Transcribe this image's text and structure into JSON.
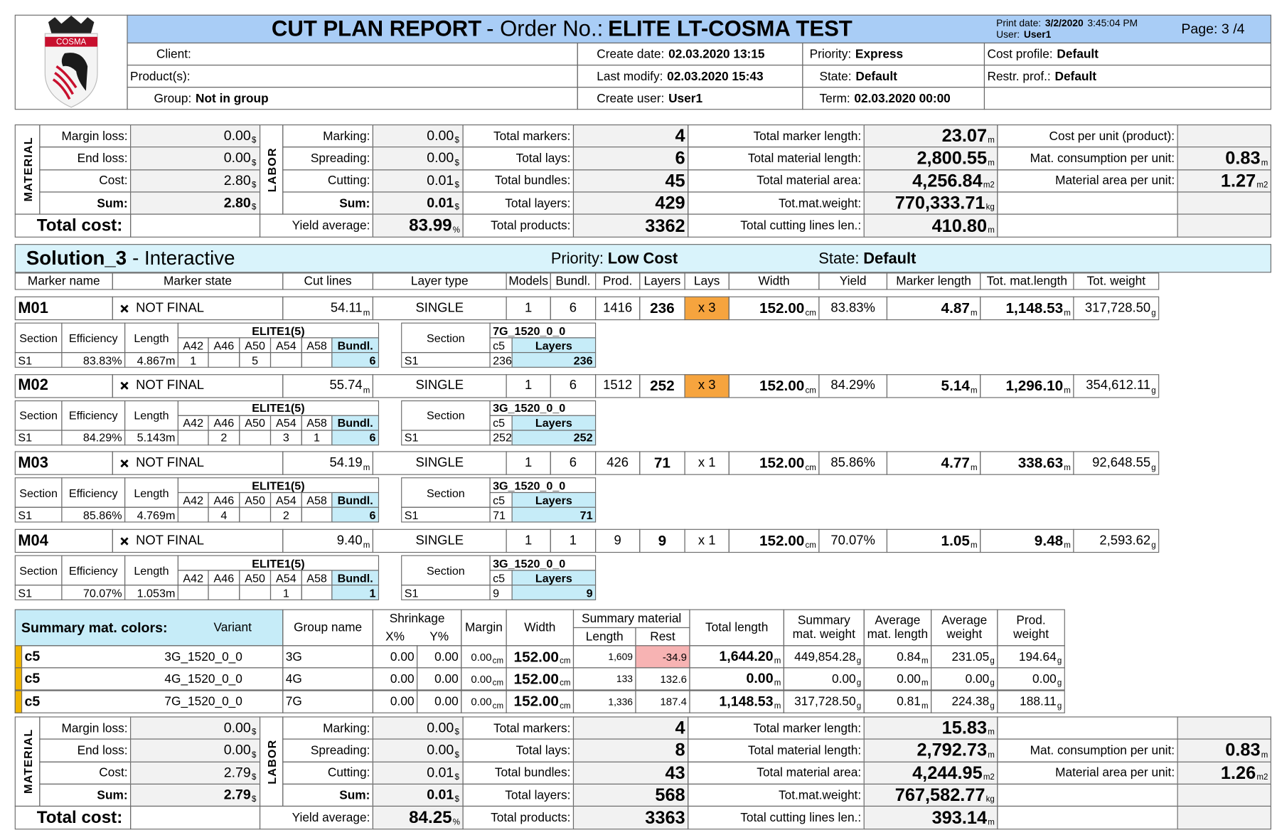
{
  "header": {
    "logo": "COSMA",
    "title": "CUT PLAN REPORT",
    "order_label": "- Order No.:",
    "order": "ELITE LT-COSMA TEST",
    "print_date_label": "Print date:",
    "print_date": "3/2/2020",
    "print_time": "3:45:04 PM",
    "user_label": "User:",
    "user": "User1",
    "page": "Page: 3 /4"
  },
  "info": {
    "client_label": "Client:",
    "products_label": "Product(s):",
    "group_label": "Group:",
    "group": "Not in group",
    "create_date_label": "Create date:",
    "create_date": "02.03.2020  13:15",
    "last_modify_label": "Last modify:",
    "last_modify": "02.03.2020  15:43",
    "create_user_label": "Create user:",
    "create_user": "User1",
    "priority_label": "Priority:",
    "priority": "Express",
    "state_label": "State:",
    "state": "Default",
    "term_label": "Term:",
    "term": "02.03.2020  00:00",
    "cost_profile_label": "Cost profile:",
    "cost_profile": "Default",
    "restr_label": "Restr. prof.:",
    "restr": "Default"
  },
  "summaries": [
    {
      "material_label": "MATERIAL",
      "material": [
        {
          "label": "Margin loss:",
          "value": "0.00",
          "unit": "$"
        },
        {
          "label": "End loss:",
          "value": "0.00",
          "unit": "$"
        },
        {
          "label": "Cost:",
          "value": "2.80",
          "unit": "$"
        },
        {
          "label": "Sum:",
          "value": "2.80",
          "unit": "$"
        }
      ],
      "labor_label": "LABOR",
      "labor": [
        {
          "label": "Marking:",
          "value": "0.00",
          "unit": "$"
        },
        {
          "label": "Spreading:",
          "value": "0.00",
          "unit": "$"
        },
        {
          "label": "Cutting:",
          "value": "0.01",
          "unit": "$"
        },
        {
          "label": "Sum:",
          "value": "0.01",
          "unit": "$"
        }
      ],
      "total_cost": "Total cost:",
      "yield": {
        "label": "Yield average:",
        "value": "83.99",
        "unit": "%"
      },
      "counts": [
        {
          "label": "Total markers:",
          "value": "4"
        },
        {
          "label": "Total lays:",
          "value": "6"
        },
        {
          "label": "Total bundles:",
          "value": "45"
        },
        {
          "label": "Total layers:",
          "value": "429"
        },
        {
          "label": "Total products:",
          "value": "3362"
        }
      ],
      "lengths": [
        {
          "label": "Total marker length:",
          "value": "23.07",
          "unit": "m"
        },
        {
          "label": "Total material length:",
          "value": "2,800.55",
          "unit": "m"
        },
        {
          "label": "Total material area:",
          "value": "4,256.84",
          "unit": "m2"
        },
        {
          "label": "Tot.mat.weight:",
          "value": "770,333.71",
          "unit": "kg"
        },
        {
          "label": "Total cutting lines len.:",
          "value": "410.80",
          "unit": "m"
        }
      ],
      "per_unit": {
        "cost": {
          "label": "Cost per unit (product):"
        },
        "consumption": {
          "label": "Mat. consumption per unit:",
          "value": "0.83",
          "unit": "m"
        },
        "area": {
          "label": "Material area per unit:",
          "value": "1.27",
          "unit": "m2"
        }
      }
    },
    {
      "material_label": "MATERIAL",
      "material": [
        {
          "label": "Margin loss:",
          "value": "0.00",
          "unit": "$"
        },
        {
          "label": "End loss:",
          "value": "0.00",
          "unit": "$"
        },
        {
          "label": "Cost:",
          "value": "2.79",
          "unit": "$"
        },
        {
          "label": "Sum:",
          "value": "2.79",
          "unit": "$"
        }
      ],
      "labor_label": "LABOR",
      "labor": [
        {
          "label": "Marking:",
          "value": "0.00",
          "unit": "$"
        },
        {
          "label": "Spreading:",
          "value": "0.00",
          "unit": "$"
        },
        {
          "label": "Cutting:",
          "value": "0.01",
          "unit": "$"
        },
        {
          "label": "Sum:",
          "value": "0.01",
          "unit": "$"
        }
      ],
      "total_cost": "Total cost:",
      "yield": {
        "label": "Yield average:",
        "value": "84.25",
        "unit": "%"
      },
      "counts": [
        {
          "label": "Total markers:",
          "value": "4"
        },
        {
          "label": "Total lays:",
          "value": "8"
        },
        {
          "label": "Total bundles:",
          "value": "43"
        },
        {
          "label": "Total layers:",
          "value": "568"
        },
        {
          "label": "Total products:",
          "value": "3363"
        }
      ],
      "lengths": [
        {
          "label": "Total marker length:",
          "value": "15.83",
          "unit": "m"
        },
        {
          "label": "Total material length:",
          "value": "2,792.73",
          "unit": "m"
        },
        {
          "label": "Total material area:",
          "value": "4,244.95",
          "unit": "m2"
        },
        {
          "label": "Tot.mat.weight:",
          "value": "767,582.77",
          "unit": "kg"
        },
        {
          "label": "Total cutting lines len.:",
          "value": "393.14",
          "unit": "m"
        }
      ],
      "per_unit": {
        "consumption": {
          "label": "Mat. consumption per unit:",
          "value": "0.83",
          "unit": "m"
        },
        "area": {
          "label": "Material area per unit:",
          "value": "1.26",
          "unit": "m2"
        }
      }
    }
  ],
  "solution": {
    "name": "Solution_3",
    "mode": "- Interactive",
    "priority_label": "Priority:",
    "priority": "Low Cost",
    "state_label": "State:",
    "state": "Default",
    "columns": [
      "Marker name",
      "Marker state",
      "Cut lines",
      "Layer type",
      "Models",
      "Bundl.",
      "Prod.",
      "Layers",
      "Lays",
      "Width",
      "Yield",
      "Marker length",
      "Tot. mat.length",
      "Tot. weight"
    ]
  },
  "section_headers": {
    "section": "Section",
    "efficiency": "Efficiency",
    "length": "Length",
    "group": "ELITE1(5)",
    "sizes": [
      "A42",
      "A46",
      "A50",
      "A54",
      "A58"
    ],
    "bundl": "Bundl.",
    "color": "c5",
    "layers": "Layers"
  },
  "markers": [
    {
      "row": [
        {
          "value": "M01"
        },
        {
          "value": "NOT FINAL"
        },
        {
          "value": "54.11",
          "unit": "m"
        },
        {
          "value": "SINGLE"
        },
        {
          "value": "1"
        },
        {
          "value": "6"
        },
        {
          "value": "1416"
        },
        {
          "value": "236"
        },
        {
          "value": "x 3"
        },
        {
          "value": "152.00",
          "unit": "cm"
        },
        {
          "value": "83.83%"
        },
        {
          "value": "4.87",
          "unit": "m"
        },
        {
          "value": "1,148.53",
          "unit": "m"
        },
        {
          "value": "317,728.50",
          "unit": "g"
        }
      ],
      "lays_highlight": true,
      "section": "S1",
      "efficiency": "83.83%",
      "length": "4.867m",
      "sizes": [
        "1",
        null,
        "5",
        null,
        null
      ],
      "bundl": "6",
      "fabric": "7G_1520_0_0",
      "layers_section": "S1",
      "color_layers": "236",
      "layers": "236"
    },
    {
      "row": [
        {
          "value": "M02"
        },
        {
          "value": "NOT FINAL"
        },
        {
          "value": "55.74",
          "unit": "m"
        },
        {
          "value": "SINGLE"
        },
        {
          "value": "1"
        },
        {
          "value": "6"
        },
        {
          "value": "1512"
        },
        {
          "value": "252"
        },
        {
          "value": "x 3"
        },
        {
          "value": "152.00",
          "unit": "cm"
        },
        {
          "value": "84.29%"
        },
        {
          "value": "5.14",
          "unit": "m"
        },
        {
          "value": "1,296.10",
          "unit": "m"
        },
        {
          "value": "354,612.11",
          "unit": "g"
        }
      ],
      "lays_highlight": true,
      "section": "S1",
      "efficiency": "84.29%",
      "length": "5.143m",
      "sizes": [
        null,
        "2",
        null,
        "3",
        "1"
      ],
      "bundl": "6",
      "fabric": "3G_1520_0_0",
      "layers_section": "S1",
      "color_layers": "252",
      "layers": "252"
    },
    {
      "row": [
        {
          "value": "M03"
        },
        {
          "value": "NOT FINAL"
        },
        {
          "value": "54.19",
          "unit": "m"
        },
        {
          "value": "SINGLE"
        },
        {
          "value": "1"
        },
        {
          "value": "6"
        },
        {
          "value": "426"
        },
        {
          "value": "71"
        },
        {
          "value": "x 1"
        },
        {
          "value": "152.00",
          "unit": "cm"
        },
        {
          "value": "85.86%"
        },
        {
          "value": "4.77",
          "unit": "m"
        },
        {
          "value": "338.63",
          "unit": "m"
        },
        {
          "value": "92,648.55",
          "unit": "g"
        }
      ],
      "lays_highlight": false,
      "section": "S1",
      "efficiency": "85.86%",
      "length": "4.769m",
      "sizes": [
        null,
        "4",
        null,
        "2",
        null
      ],
      "bundl": "6",
      "fabric": "3G_1520_0_0",
      "layers_section": "S1",
      "color_layers": "71",
      "layers": "71"
    },
    {
      "row": [
        {
          "value": "M04"
        },
        {
          "value": "NOT FINAL"
        },
        {
          "value": "9.40",
          "unit": "m"
        },
        {
          "value": "SINGLE"
        },
        {
          "value": "1"
        },
        {
          "value": "1"
        },
        {
          "value": "9"
        },
        {
          "value": "9"
        },
        {
          "value": "x 1"
        },
        {
          "value": "152.00",
          "unit": "cm"
        },
        {
          "value": "70.07%"
        },
        {
          "value": "1.05",
          "unit": "m"
        },
        {
          "value": "9.48",
          "unit": "m"
        },
        {
          "value": "2,593.62",
          "unit": "g"
        }
      ],
      "lays_highlight": false,
      "section": "S1",
      "efficiency": "70.07%",
      "length": "1.053m",
      "sizes": [
        null,
        null,
        null,
        "1",
        null
      ],
      "bundl": "1",
      "fabric": "3G_1520_0_0",
      "layers_section": "S1",
      "color_layers": "9",
      "layers": "9"
    }
  ],
  "colors": {
    "headers": {
      "title": "Summary mat. colors:",
      "variant": "Variant",
      "group": "Group name",
      "shrinkage": "Shrinkage",
      "x": "X%",
      "y": "Y%",
      "margin": "Margin",
      "width": "Width",
      "summary_material": "Summary material",
      "length": "Length",
      "rest": "Rest",
      "total_length": "Total length",
      "weight": [
        "Summary",
        "mat. weight"
      ],
      "avg_length": [
        "Average",
        "mat. length"
      ],
      "avg_weight": [
        "Average",
        "weight"
      ],
      "prod_weight": [
        "Prod.",
        "weight"
      ]
    },
    "rows": [
      {
        "color": "c5",
        "variant": "3G_1520_0_0",
        "group": "3G",
        "rest_warning": true,
        "cells": [
          {
            "value": "0.00"
          },
          {
            "value": "0.00"
          },
          {
            "value": "0.00",
            "unit": "cm"
          },
          {
            "value": "152.00",
            "unit": "cm"
          },
          {
            "value": "1,609"
          },
          {
            "value": "-34.9"
          },
          {
            "value": "1,644.20",
            "unit": "m"
          },
          {
            "value": "449,854.28",
            "unit": "g"
          },
          {
            "value": "0.84",
            "unit": "m"
          },
          {
            "value": "231.05",
            "unit": "g"
          },
          {
            "value": "194.64",
            "unit": "g"
          }
        ]
      },
      {
        "color": "c5",
        "variant": "4G_1520_0_0",
        "group": "4G",
        "rest_warning": false,
        "cells": [
          {
            "value": "0.00"
          },
          {
            "value": "0.00"
          },
          {
            "value": "0.00",
            "unit": "cm"
          },
          {
            "value": "152.00",
            "unit": "cm"
          },
          {
            "value": "133"
          },
          {
            "value": "132.6"
          },
          {
            "value": "0.00",
            "unit": "m"
          },
          {
            "value": "0.00",
            "unit": "g"
          },
          {
            "value": "0.00",
            "unit": "m"
          },
          {
            "value": "0.00",
            "unit": "g"
          },
          {
            "value": "0.00",
            "unit": "g"
          }
        ]
      },
      {
        "color": "c5",
        "variant": "7G_1520_0_0",
        "group": "7G",
        "rest_warning": false,
        "cells": [
          {
            "value": "0.00"
          },
          {
            "value": "0.00"
          },
          {
            "value": "0.00",
            "unit": "cm"
          },
          {
            "value": "152.00",
            "unit": "cm"
          },
          {
            "value": "1,336"
          },
          {
            "value": "187.4"
          },
          {
            "value": "1,148.53",
            "unit": "m"
          },
          {
            "value": "317,728.50",
            "unit": "g"
          },
          {
            "value": "0.81",
            "unit": "m"
          },
          {
            "value": "224.38",
            "unit": "g"
          },
          {
            "value": "188.11",
            "unit": "g"
          }
        ]
      }
    ]
  }
}
